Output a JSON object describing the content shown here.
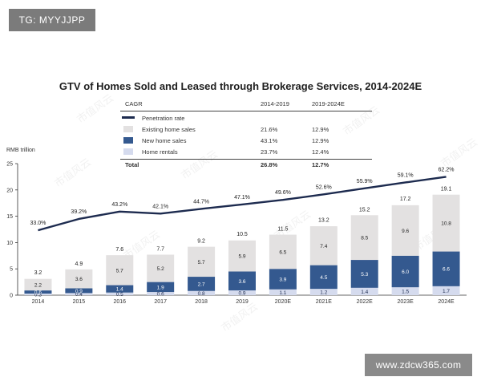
{
  "badges": {
    "top_left": "TG: MYYJJPP",
    "bottom_right": "www.zdcw365.com"
  },
  "watermark_text": "市值风云",
  "colors": {
    "existing": "#e3e1e1",
    "new": "#34598f",
    "rentals": "#d5dbee",
    "line": "#1d2b4f",
    "axis": "#333333"
  },
  "cagr_table": {
    "header": {
      "label": "CAGR",
      "col1": "2014-2019",
      "col2": "2019-2024E"
    },
    "rows": [
      {
        "label": "Penetration rate",
        "col1": "",
        "col2": "",
        "swatch": "line"
      },
      {
        "label": "Existing home sales",
        "col1": "21.6%",
        "col2": "12.9%",
        "swatch": "existing"
      },
      {
        "label": "New home sales",
        "col1": "43.1%",
        "col2": "12.9%",
        "swatch": "new"
      },
      {
        "label": "Home rentals",
        "col1": "23.7%",
        "col2": "12.4%",
        "swatch": "rentals"
      }
    ],
    "total": {
      "label": "Total",
      "col1": "26.8%",
      "col2": "12.7%"
    }
  },
  "chart_data": {
    "type": "bar",
    "title": "GTV of Homes Sold and Leased through Brokerage Services, 2014-2024E",
    "ylabel": "RMB trillion",
    "xlabel": "",
    "ylim": [
      0,
      25
    ],
    "yticks": [
      0,
      5,
      10,
      15,
      20,
      25
    ],
    "stacked": true,
    "legend_position": "top-left",
    "categories": [
      "2014",
      "2015",
      "2016",
      "2017",
      "2018",
      "2019",
      "2020E",
      "2021E",
      "2022E",
      "2023E",
      "2024E"
    ],
    "series": [
      {
        "name": "Home rentals",
        "values": [
          0.3,
          0.4,
          0.5,
          0.6,
          0.8,
          0.9,
          1.1,
          1.2,
          1.4,
          1.5,
          1.7
        ]
      },
      {
        "name": "New home sales",
        "values": [
          0.6,
          0.9,
          1.4,
          1.9,
          2.7,
          3.6,
          3.9,
          4.5,
          5.3,
          6.0,
          6.6
        ]
      },
      {
        "name": "Existing home sales",
        "values": [
          2.2,
          3.6,
          5.7,
          5.2,
          5.7,
          5.9,
          6.5,
          7.4,
          8.5,
          9.6,
          10.8
        ]
      }
    ],
    "totals": [
      3.2,
      4.9,
      7.6,
      7.7,
      9.2,
      10.5,
      11.5,
      13.2,
      15.2,
      17.2,
      19.1
    ],
    "penetration_rate": {
      "name": "Penetration rate",
      "values": [
        33.0,
        39.2,
        43.2,
        42.1,
        44.7,
        47.1,
        49.6,
        52.6,
        55.9,
        59.1,
        62.2
      ],
      "labels": [
        "33.0%",
        "39.2%",
        "43.2%",
        "42.1%",
        "44.7%",
        "47.1%",
        "49.6%",
        "52.6%",
        "55.9%",
        "59.1%",
        "62.2%"
      ]
    }
  }
}
